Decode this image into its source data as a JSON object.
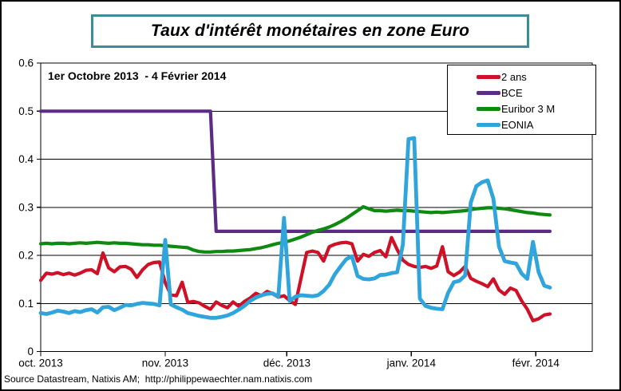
{
  "chart_data": {
    "type": "line",
    "title": "Taux d'intérêt monétaires en zone Euro",
    "subtitle": "1er Octobre 2013  - 4 Février 2014",
    "source": "Source Datastream, Natixis AM;  http://philippewaechter.nam.natixis.com",
    "grid": "horizontal",
    "legend_position": "top-right",
    "ylim": [
      0,
      0.6
    ],
    "n_points": 91,
    "y_ticks": [
      0,
      0.1,
      0.2,
      0.3,
      0.4,
      0.5,
      0.6
    ],
    "y_tick_labels": [
      "0",
      "0.1",
      "0.2",
      "0.3",
      "0.4",
      "0.5",
      "0.6"
    ],
    "x_tick_labels": [
      "oct. 2013",
      "nov. 2013",
      "déc. 2013",
      "janv. 2014",
      "févr. 2014"
    ],
    "x_tick_positions": [
      0,
      22,
      43.5,
      65.5,
      87.5
    ],
    "series": [
      {
        "name": "2 ans",
        "color": "#CE1126",
        "values": [
          0.148,
          0.163,
          0.161,
          0.164,
          0.16,
          0.163,
          0.159,
          0.163,
          0.169,
          0.17,
          0.162,
          0.205,
          0.174,
          0.166,
          0.176,
          0.177,
          0.171,
          0.154,
          0.17,
          0.181,
          0.185,
          0.186,
          0.143,
          0.118,
          0.116,
          0.144,
          0.102,
          0.104,
          0.101,
          0.094,
          0.088,
          0.103,
          0.096,
          0.091,
          0.103,
          0.094,
          0.104,
          0.111,
          0.121,
          0.116,
          0.125,
          0.12,
          0.113,
          0.116,
          0.106,
          0.098,
          0.152,
          0.206,
          0.209,
          0.206,
          0.188,
          0.218,
          0.223,
          0.226,
          0.227,
          0.224,
          0.188,
          0.202,
          0.198,
          0.206,
          0.21,
          0.197,
          0.237,
          0.212,
          0.19,
          0.181,
          0.177,
          0.175,
          0.177,
          0.173,
          0.178,
          0.218,
          0.166,
          0.158,
          0.165,
          0.177,
          0.152,
          0.146,
          0.141,
          0.135,
          0.151,
          0.128,
          0.119,
          0.132,
          0.127,
          0.105,
          0.088,
          0.064,
          0.068,
          0.076,
          0.078
        ]
      },
      {
        "name": "BCE",
        "color": "#5B2B85",
        "values": [
          0.5,
          0.5,
          0.5,
          0.5,
          0.5,
          0.5,
          0.5,
          0.5,
          0.5,
          0.5,
          0.5,
          0.5,
          0.5,
          0.5,
          0.5,
          0.5,
          0.5,
          0.5,
          0.5,
          0.5,
          0.5,
          0.5,
          0.5,
          0.5,
          0.5,
          0.5,
          0.5,
          0.5,
          0.5,
          0.5,
          0.5,
          0.25,
          0.25,
          0.25,
          0.25,
          0.25,
          0.25,
          0.25,
          0.25,
          0.25,
          0.25,
          0.25,
          0.25,
          0.25,
          0.25,
          0.25,
          0.25,
          0.25,
          0.25,
          0.25,
          0.25,
          0.25,
          0.25,
          0.25,
          0.25,
          0.25,
          0.25,
          0.25,
          0.25,
          0.25,
          0.25,
          0.25,
          0.25,
          0.25,
          0.25,
          0.25,
          0.25,
          0.25,
          0.25,
          0.25,
          0.25,
          0.25,
          0.25,
          0.25,
          0.25,
          0.25,
          0.25,
          0.25,
          0.25,
          0.25,
          0.25,
          0.25,
          0.25,
          0.25,
          0.25,
          0.25,
          0.25,
          0.25,
          0.25,
          0.25,
          0.25
        ]
      },
      {
        "name": "Euribor 3 M",
        "color": "#0F8A10",
        "values": [
          0.224,
          0.225,
          0.224,
          0.225,
          0.225,
          0.224,
          0.225,
          0.226,
          0.225,
          0.226,
          0.227,
          0.226,
          0.225,
          0.226,
          0.225,
          0.225,
          0.224,
          0.223,
          0.222,
          0.222,
          0.221,
          0.221,
          0.22,
          0.219,
          0.218,
          0.217,
          0.216,
          0.211,
          0.208,
          0.207,
          0.207,
          0.208,
          0.208,
          0.209,
          0.209,
          0.21,
          0.211,
          0.212,
          0.214,
          0.216,
          0.219,
          0.222,
          0.225,
          0.227,
          0.23,
          0.234,
          0.238,
          0.243,
          0.248,
          0.252,
          0.255,
          0.259,
          0.264,
          0.27,
          0.277,
          0.285,
          0.293,
          0.301,
          0.297,
          0.293,
          0.293,
          0.292,
          0.293,
          0.294,
          0.293,
          0.293,
          0.292,
          0.291,
          0.29,
          0.289,
          0.29,
          0.289,
          0.29,
          0.291,
          0.292,
          0.293,
          0.295,
          0.297,
          0.298,
          0.299,
          0.299,
          0.298,
          0.297,
          0.295,
          0.293,
          0.291,
          0.289,
          0.288,
          0.286,
          0.285,
          0.284
        ]
      },
      {
        "name": "EONIA",
        "color": "#2FA5DC",
        "values": [
          0.08,
          0.078,
          0.081,
          0.085,
          0.083,
          0.08,
          0.084,
          0.082,
          0.086,
          0.088,
          0.081,
          0.092,
          0.093,
          0.086,
          0.091,
          0.097,
          0.096,
          0.099,
          0.101,
          0.1,
          0.099,
          0.096,
          0.232,
          0.098,
          0.092,
          0.087,
          0.08,
          0.077,
          0.074,
          0.072,
          0.07,
          0.07,
          0.072,
          0.075,
          0.08,
          0.087,
          0.095,
          0.105,
          0.112,
          0.117,
          0.12,
          0.121,
          0.114,
          0.278,
          0.105,
          0.114,
          0.117,
          0.116,
          0.115,
          0.117,
          0.126,
          0.139,
          0.161,
          0.177,
          0.192,
          0.198,
          0.157,
          0.151,
          0.15,
          0.152,
          0.159,
          0.16,
          0.163,
          0.165,
          0.222,
          0.442,
          0.444,
          0.11,
          0.095,
          0.091,
          0.089,
          0.088,
          0.122,
          0.144,
          0.147,
          0.158,
          0.31,
          0.344,
          0.352,
          0.356,
          0.318,
          0.218,
          0.188,
          0.185,
          0.183,
          0.162,
          0.151,
          0.228,
          0.165,
          0.137,
          0.133
        ]
      }
    ]
  }
}
